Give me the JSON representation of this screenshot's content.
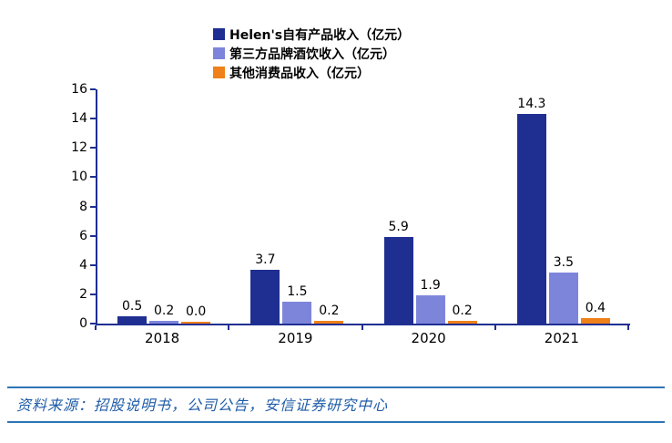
{
  "chart_data": {
    "type": "bar",
    "categories": [
      "2018",
      "2019",
      "2020",
      "2021"
    ],
    "series": [
      {
        "name": "Helen's自有产品收入（亿元）",
        "color": "#1F2F91",
        "values": [
          0.5,
          3.7,
          5.9,
          14.3
        ]
      },
      {
        "name": "第三方品牌酒饮收入（亿元）",
        "color": "#7D85DB",
        "values": [
          0.2,
          1.5,
          1.9,
          3.5
        ]
      },
      {
        "name": "其他消费品收入（亿元）",
        "color": "#F08019",
        "values": [
          0.0,
          0.2,
          0.2,
          0.4
        ]
      }
    ],
    "title": "",
    "xlabel": "",
    "ylabel": "",
    "ylim": [
      0,
      16
    ],
    "ytick_step": 2,
    "grid": false,
    "legend_position": "top",
    "value_labels": true,
    "value_label_decimals": 1
  },
  "footer": {
    "source_text": "资料来源：招股说明书，公司公告，安信证券研究中心"
  },
  "style": {
    "axis_color": "#1F2F91",
    "footer_line_color": "#2E75B6",
    "footer_text_color": "#1F5CA8",
    "label_color": "#000000"
  }
}
